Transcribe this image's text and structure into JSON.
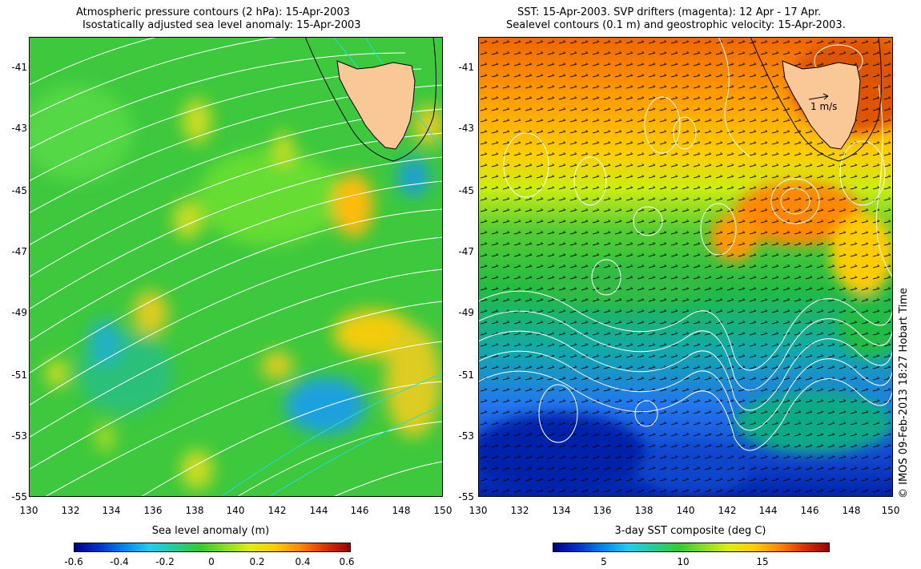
{
  "left_panel": {
    "title_line1": "Atmospheric pressure contours (2 hPa): 15-Apr-2003",
    "title_line2": "Isostatically adjusted sea level anomaly: 15-Apr-2003",
    "y_ticks": [
      "-41",
      "-43",
      "-45",
      "-47",
      "-49",
      "-51",
      "-53",
      "-55"
    ],
    "x_ticks": [
      "130",
      "132",
      "134",
      "136",
      "138",
      "140",
      "142",
      "144",
      "146",
      "148",
      "150"
    ],
    "colorbar_title": "Sea level anomaly (m)",
    "colorbar_ticks": [
      "-0.6",
      "-0.4",
      "-0.2",
      "0",
      "0.2",
      "0.4",
      "0.6"
    ],
    "colors": {
      "base": "#33cc33",
      "low": "#22aaee",
      "high": "#ffcc00",
      "land": "#f9c896",
      "pressure": "#ffffff",
      "pressure_alt": "#22dddd"
    }
  },
  "right_panel": {
    "title_line1": "SST: 15-Apr-2003. SVP drifters (magenta): 12 Apr - 17 Apr.",
    "title_line2": "Sealevel contours (0.1 m) and geostrophic velocity: 15-Apr-2003.",
    "y_ticks": [
      "-41",
      "-43",
      "-45",
      "-47",
      "-49",
      "-51",
      "-53",
      "-55"
    ],
    "x_ticks": [
      "130",
      "132",
      "134",
      "136",
      "138",
      "140",
      "142",
      "144",
      "146",
      "148",
      "150"
    ],
    "velocity_label": "1 m/s",
    "colorbar_title": "3-day SST composite (deg C)",
    "colorbar_ticks": [
      "5",
      "10",
      "15"
    ],
    "colors": {
      "warm": "#ff7700",
      "mid": "#ccee00",
      "green": "#22bb44",
      "cool": "#2266ee",
      "cold": "#0022aa",
      "land": "#f9c896"
    }
  },
  "credit": "© IMOS 09-Feb-2013 18:27 Hobart Time"
}
